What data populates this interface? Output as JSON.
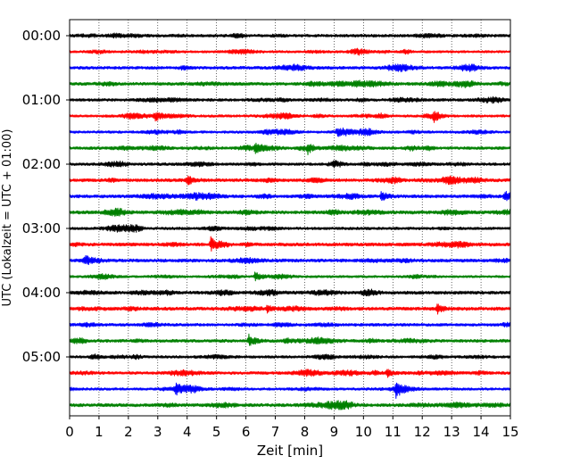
{
  "chart_data": {
    "type": "line",
    "xlabel": "Zeit  [min]",
    "ylabel": "UTC (Lokalzeit = UTC + 01:00)",
    "xlim": [
      0,
      15
    ],
    "x_ticks": [
      "0",
      "1",
      "2",
      "3",
      "4",
      "5",
      "6",
      "7",
      "8",
      "9",
      "10",
      "11",
      "12",
      "13",
      "14",
      "15"
    ],
    "y_tick_labels": [
      "00:00",
      "01:00",
      "02:00",
      "03:00",
      "04:00",
      "05:00"
    ],
    "grid": "vertical dotted",
    "trace_colors": [
      "#000000",
      "#ff0000",
      "#0000ff",
      "#008000"
    ],
    "row_starts_utc": [
      "00:00",
      "00:15",
      "00:30",
      "00:45",
      "01:00",
      "01:15",
      "01:30",
      "01:45",
      "02:00",
      "02:15",
      "02:30",
      "02:45",
      "03:00",
      "03:15",
      "03:30",
      "03:45",
      "04:00",
      "04:15",
      "04:30",
      "04:45",
      "05:00",
      "05:15",
      "05:30",
      "05:45"
    ],
    "events": [
      {
        "row": 5,
        "t": 2.9,
        "amp": 6
      },
      {
        "row": 5,
        "t": 12.4,
        "amp": 5
      },
      {
        "row": 6,
        "t": 9.1,
        "amp": 6
      },
      {
        "row": 7,
        "t": 6.3,
        "amp": 5
      },
      {
        "row": 7,
        "t": 8.1,
        "amp": 5
      },
      {
        "row": 9,
        "t": 4.0,
        "amp": 5
      },
      {
        "row": 10,
        "t": 10.6,
        "amp": 5
      },
      {
        "row": 10,
        "t": 14.8,
        "amp": 7
      },
      {
        "row": 13,
        "t": 4.8,
        "amp": 8
      },
      {
        "row": 14,
        "t": 0.5,
        "amp": 5
      },
      {
        "row": 15,
        "t": 6.3,
        "amp": 5
      },
      {
        "row": 17,
        "t": 12.5,
        "amp": 5
      },
      {
        "row": 17,
        "t": 6.7,
        "amp": 4
      },
      {
        "row": 19,
        "t": 6.1,
        "amp": 7
      },
      {
        "row": 21,
        "t": 10.8,
        "amp": 4
      },
      {
        "row": 22,
        "t": 11.1,
        "amp": 8
      },
      {
        "row": 22,
        "t": 3.6,
        "amp": 5
      }
    ]
  }
}
